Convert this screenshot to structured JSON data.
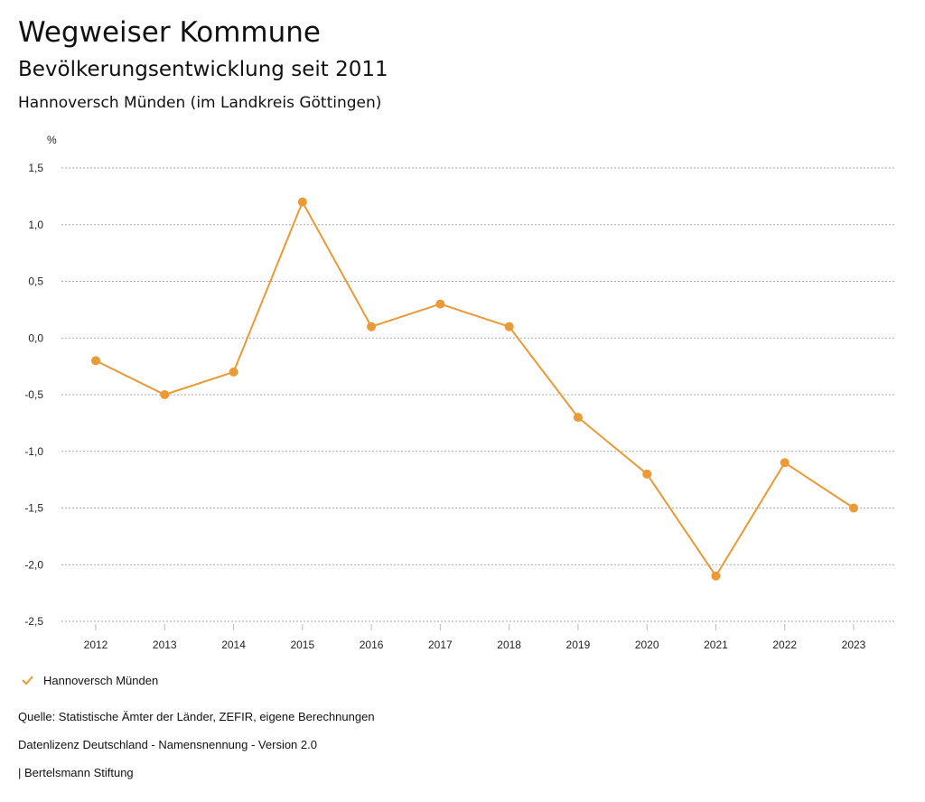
{
  "header": {
    "title": "Wegweiser Kommune",
    "subtitle": "Bevölkerungsentwicklung seit 2011",
    "region": "Hannoversch Münden (im Landkreis Göttingen)"
  },
  "chart_data": {
    "type": "line",
    "ylabel": "%",
    "ylim": [
      -2.5,
      1.5
    ],
    "yticks": [
      1.5,
      1.0,
      0.5,
      0.0,
      -0.5,
      -1.0,
      -1.5,
      -2.0,
      -2.5
    ],
    "ytick_labels": [
      "1,5",
      "1,0",
      "0,5",
      "0,0",
      "-0,5",
      "-1,0",
      "-1,5",
      "-2,0",
      "-2,5"
    ],
    "categories": [
      "2012",
      "2013",
      "2014",
      "2015",
      "2016",
      "2017",
      "2018",
      "2019",
      "2020",
      "2021",
      "2022",
      "2023"
    ],
    "series": [
      {
        "name": "Hannoversch Münden",
        "color": "#EB9A35",
        "values": [
          -0.2,
          -0.5,
          -0.3,
          1.2,
          0.1,
          0.3,
          0.1,
          -0.7,
          -1.2,
          -2.1,
          -1.1,
          -1.5
        ]
      }
    ],
    "grid": true,
    "legend": "bottom-left"
  },
  "footer": {
    "source": "Quelle: Statistische Ämter der Länder, ZEFIR, eigene Berechnungen",
    "license": "Datenlizenz Deutschland - Namensnennung - Version 2.0",
    "brand": "| Bertelsmann Stiftung"
  }
}
